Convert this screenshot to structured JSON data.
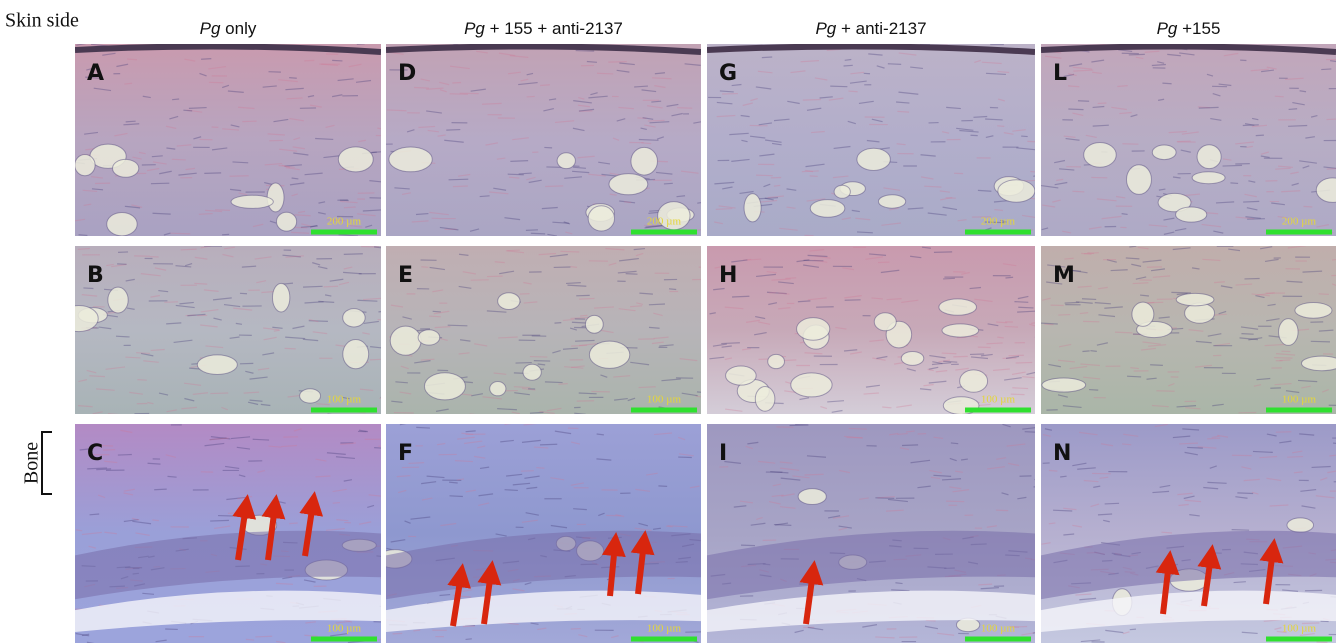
{
  "title": "Skin side",
  "side_label": "Bone",
  "columns": [
    {
      "italic": "Pg",
      "text": " only"
    },
    {
      "italic": "Pg",
      "text": " + 155 + anti-2137"
    },
    {
      "italic": "Pg",
      "text": " + anti-2137"
    },
    {
      "italic": "Pg",
      "text": " +155"
    }
  ],
  "panels": [
    [
      {
        "letter": "A",
        "scale": "200 µm"
      },
      {
        "letter": "D",
        "scale": "200 µm"
      },
      {
        "letter": "G",
        "scale": "200 µm"
      },
      {
        "letter": "L",
        "scale": "200 µm"
      }
    ],
    [
      {
        "letter": "B",
        "scale": "100 µm"
      },
      {
        "letter": "E",
        "scale": "100 µm"
      },
      {
        "letter": "H",
        "scale": "100 µm"
      },
      {
        "letter": "M",
        "scale": "100 µm"
      }
    ],
    [
      {
        "letter": "C",
        "scale": "100 µm"
      },
      {
        "letter": "F",
        "scale": "100 µm"
      },
      {
        "letter": "I",
        "scale": "100 µm"
      },
      {
        "letter": "N",
        "scale": "100 µm"
      }
    ]
  ]
}
